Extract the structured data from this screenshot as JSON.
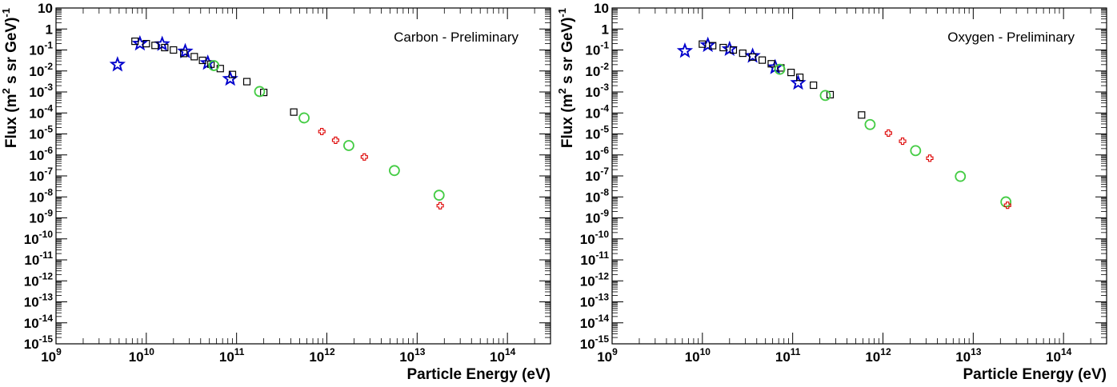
{
  "chart_data": [
    {
      "type": "scatter",
      "title": "Carbon - Preliminary",
      "xlabel": "Particle Energy (eV)",
      "ylabel": "Flux (m",
      "ylabel_sup1": "2",
      "ylabel_mid": " s sr GeV)",
      "ylabel_sup2": "-1",
      "x_scale": "log",
      "y_scale": "log",
      "xlim": [
        1000000000.0,
        300000000000000.0
      ],
      "ylim": [
        1e-15,
        10
      ],
      "x_ticks": [
        {
          "base": "10",
          "exp": "9"
        },
        {
          "base": "10",
          "exp": "10"
        },
        {
          "base": "10",
          "exp": "11"
        },
        {
          "base": "10",
          "exp": "12"
        },
        {
          "base": "10",
          "exp": "13"
        },
        {
          "base": "10",
          "exp": "14"
        }
      ],
      "y_ticks": [
        {
          "base": "10",
          "exp": ""
        },
        {
          "base": "1",
          "exp": ""
        },
        {
          "base": "10",
          "exp": "-1"
        },
        {
          "base": "10",
          "exp": "-2"
        },
        {
          "base": "10",
          "exp": "-3"
        },
        {
          "base": "10",
          "exp": "-4"
        },
        {
          "base": "10",
          "exp": "-5"
        },
        {
          "base": "10",
          "exp": "-6"
        },
        {
          "base": "10",
          "exp": "-7"
        },
        {
          "base": "10",
          "exp": "-8"
        },
        {
          "base": "10",
          "exp": "-9"
        },
        {
          "base": "10",
          "exp": "-10"
        },
        {
          "base": "10",
          "exp": "-11"
        },
        {
          "base": "10",
          "exp": "-12"
        },
        {
          "base": "10",
          "exp": "-13"
        },
        {
          "base": "10",
          "exp": "-14"
        },
        {
          "base": "10",
          "exp": "-15"
        }
      ],
      "grid": false,
      "legend": "none",
      "series": [
        {
          "marker": "star",
          "color": "#0000cc",
          "x": [
            4800000000.0,
            8500000000.0,
            15000000000.0,
            27000000000.0,
            48000000000.0,
            85000000000.0
          ],
          "y": [
            0.02,
            0.2,
            0.19,
            0.085,
            0.024,
            0.0042
          ]
        },
        {
          "marker": "square",
          "color": "#000000",
          "x": [
            7500000000.0,
            10000000000.0,
            12500000000.0,
            16000000000.0,
            20000000000.0,
            26000000000.0,
            34000000000.0,
            42000000000.0,
            52000000000.0,
            66000000000.0,
            90000000000.0,
            130000000000.0,
            200000000000.0,
            430000000000.0
          ],
          "y": [
            0.26,
            0.2,
            0.165,
            0.13,
            0.1,
            0.068,
            0.048,
            0.032,
            0.021,
            0.013,
            0.0068,
            0.0031,
            0.00095,
            0.00011
          ]
        },
        {
          "marker": "circle",
          "color": "#44cc44",
          "x": [
            56000000000.0,
            180000000000.0,
            560000000000.0,
            1750000000000.0,
            5600000000000.0,
            17500000000000.0
          ],
          "y": [
            0.018,
            0.00105,
            5.8e-05,
            2.8e-06,
            1.8e-07,
            1.2e-08
          ]
        },
        {
          "marker": "cross",
          "color": "#dd0000",
          "x": [
            880000000000.0,
            1250000000000.0,
            2600000000000.0,
            18000000000000.0
          ],
          "y": [
            1.3e-05,
            5e-06,
            8e-07,
            3.8e-09
          ]
        }
      ]
    },
    {
      "type": "scatter",
      "title": "Oxygen - Preliminary",
      "xlabel": "Particle Energy (eV)",
      "ylabel": "Flux (m",
      "ylabel_sup1": "2",
      "ylabel_mid": " s sr GeV)",
      "ylabel_sup2": "-1",
      "x_scale": "log",
      "y_scale": "log",
      "xlim": [
        1000000000.0,
        300000000000000.0
      ],
      "ylim": [
        1e-15,
        10
      ],
      "x_ticks": [
        {
          "base": "10",
          "exp": "9"
        },
        {
          "base": "10",
          "exp": "10"
        },
        {
          "base": "10",
          "exp": "11"
        },
        {
          "base": "10",
          "exp": "12"
        },
        {
          "base": "10",
          "exp": "13"
        },
        {
          "base": "10",
          "exp": "14"
        }
      ],
      "y_ticks": [
        {
          "base": "10",
          "exp": ""
        },
        {
          "base": "1",
          "exp": ""
        },
        {
          "base": "10",
          "exp": "-1"
        },
        {
          "base": "10",
          "exp": "-2"
        },
        {
          "base": "10",
          "exp": "-3"
        },
        {
          "base": "10",
          "exp": "-4"
        },
        {
          "base": "10",
          "exp": "-5"
        },
        {
          "base": "10",
          "exp": "-6"
        },
        {
          "base": "10",
          "exp": "-7"
        },
        {
          "base": "10",
          "exp": "-8"
        },
        {
          "base": "10",
          "exp": "-9"
        },
        {
          "base": "10",
          "exp": "-10"
        },
        {
          "base": "10",
          "exp": "-11"
        },
        {
          "base": "10",
          "exp": "-12"
        },
        {
          "base": "10",
          "exp": "-13"
        },
        {
          "base": "10",
          "exp": "-14"
        },
        {
          "base": "10",
          "exp": "-15"
        }
      ],
      "grid": false,
      "legend": "none",
      "series": [
        {
          "marker": "star",
          "color": "#0000cc",
          "x": [
            6400000000.0,
            11500000000.0,
            20000000000.0,
            36000000000.0,
            64000000000.0,
            115000000000.0
          ],
          "y": [
            0.09,
            0.17,
            0.11,
            0.052,
            0.015,
            0.0027
          ]
        },
        {
          "marker": "square",
          "color": "#000000",
          "x": [
            10000000000.0,
            13000000000.0,
            17000000000.0,
            22000000000.0,
            28000000000.0,
            36000000000.0,
            46000000000.0,
            58000000000.0,
            74000000000.0,
            96000000000.0,
            120000000000.0,
            170000000000.0,
            260000000000.0,
            580000000000.0
          ],
          "y": [
            0.19,
            0.16,
            0.13,
            0.1,
            0.07,
            0.046,
            0.033,
            0.022,
            0.014,
            0.0085,
            0.005,
            0.0021,
            0.00074,
            8e-05
          ]
        },
        {
          "marker": "circle",
          "color": "#44cc44",
          "x": [
            72000000000.0,
            230000000000.0,
            720000000000.0,
            2300000000000.0,
            7200000000000.0,
            23000000000000.0
          ],
          "y": [
            0.012,
            0.00068,
            2.8e-05,
            1.6e-06,
            9.5e-08,
            5.8e-09
          ]
        },
        {
          "marker": "cross",
          "color": "#dd0000",
          "x": [
            1150000000000.0,
            1650000000000.0,
            3300000000000.0,
            24000000000000.0
          ],
          "y": [
            1.1e-05,
            4.5e-06,
            7e-07,
            4e-09
          ]
        }
      ]
    }
  ]
}
